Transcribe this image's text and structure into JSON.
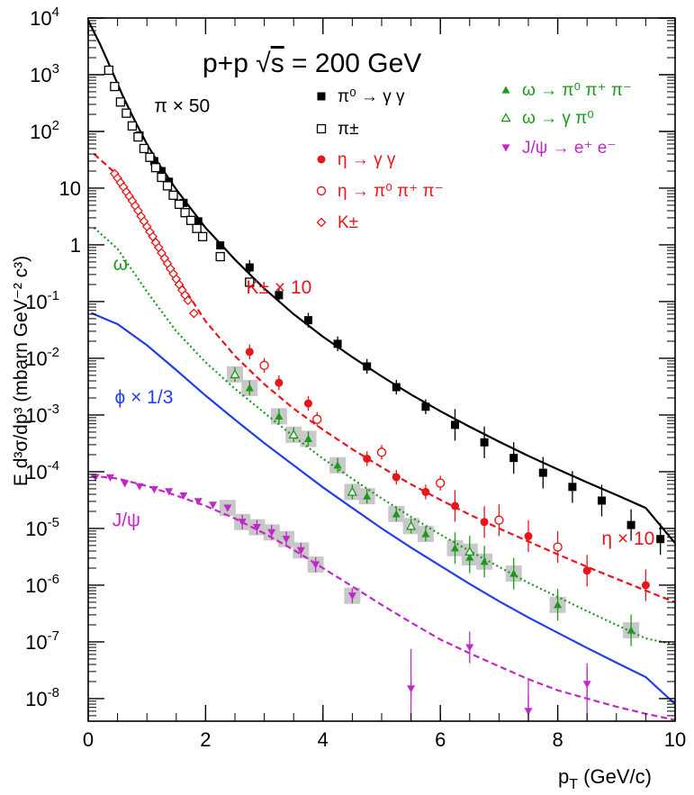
{
  "chart_data": {
    "type": "scatter",
    "title": "p+p √s = 200 GeV",
    "title_parts": {
      "pre": "p+p ",
      "sqrt": "√",
      "arg": "s",
      "post": " = 200 GeV"
    },
    "xlabel": "p_T (GeV/c)",
    "xlabel_parts": {
      "p": "p",
      "sub": "T",
      "rest": " (GeV/c)"
    },
    "ylabel": "E d³σ/dp³ (mbarn GeV⁻² c³)",
    "ylabel_text": "E d³σ/dp³ (mbarn GeV⁻² c³)",
    "xlim": [
      0,
      10
    ],
    "ylim": [
      4e-09,
      10000.0
    ],
    "y_scale": "log",
    "grid": false,
    "legend_position": "top-right",
    "x_ticks": [
      "0",
      "2",
      "4",
      "6",
      "8",
      "10"
    ],
    "y_ticks": [
      {
        "v": 10000.0,
        "base": "10",
        "exp": "4"
      },
      {
        "v": 1000.0,
        "base": "10",
        "exp": "3"
      },
      {
        "v": 100.0,
        "base": "10",
        "exp": "2"
      },
      {
        "v": 10.0,
        "base": "10",
        "exp": ""
      },
      {
        "v": 1,
        "base": "1",
        "exp": ""
      },
      {
        "v": 0.1,
        "base": "10",
        "exp": "-1"
      },
      {
        "v": 0.01,
        "base": "10",
        "exp": "-2"
      },
      {
        "v": 0.001,
        "base": "10",
        "exp": "-3"
      },
      {
        "v": 0.0001,
        "base": "10",
        "exp": "-4"
      },
      {
        "v": 1e-05,
        "base": "10",
        "exp": "-5"
      },
      {
        "v": 1e-06,
        "base": "10",
        "exp": "-6"
      },
      {
        "v": 1e-07,
        "base": "10",
        "exp": "-7"
      },
      {
        "v": 1e-08,
        "base": "10",
        "exp": "-8"
      }
    ],
    "legend": [
      {
        "label": "π⁰ → γ γ",
        "marker": "filled-square",
        "color": "#000000"
      },
      {
        "label": "π±",
        "marker": "open-square",
        "color": "#000000"
      },
      {
        "label": "η → γ γ",
        "marker": "filled-circle",
        "color": "#e8161b"
      },
      {
        "label": "η → π⁰ π⁺ π⁻",
        "marker": "open-circle",
        "color": "#e8161b"
      },
      {
        "label": "K±",
        "marker": "open-diamond",
        "color": "#e8161b"
      },
      {
        "label": "ω → π⁰ π⁺ π⁻",
        "marker": "filled-triangle",
        "color": "#1a9a1a"
      },
      {
        "label": "ω → γ π⁰",
        "marker": "open-triangle",
        "color": "#1a9a1a"
      },
      {
        "label": "J/ψ → e⁺ e⁻",
        "marker": "filled-triangle-down",
        "color": "#c028c8"
      }
    ],
    "annotations": [
      {
        "text": "π × 50",
        "color": "#000000",
        "x": 1.6,
        "y": 220
      },
      {
        "text": "K± × 10",
        "color": "#e8161b",
        "x": 3.25,
        "y": 0.14
      },
      {
        "text": "η × 10",
        "color": "#e8161b",
        "x": 9.2,
        "y": 5.2e-06
      },
      {
        "text": "ω",
        "color": "#1a9a1a",
        "x": 0.55,
        "y": 0.36
      },
      {
        "text": "ϕ × 1/3",
        "color": "#1f3ff0",
        "x": 0.95,
        "y": 0.0016
      },
      {
        "text": "J/ψ",
        "color": "#c028c8",
        "x": 0.65,
        "y": 1.1e-05
      }
    ],
    "series": [
      {
        "name": "π⁰ → γ γ",
        "marker": "filled-square",
        "color": "#000000",
        "x": [
          0.875,
          1.125,
          1.25,
          1.375,
          1.625,
          1.875,
          2.25,
          2.75,
          3.25,
          3.75,
          4.25,
          4.75,
          5.25,
          5.75,
          6.25,
          6.75,
          7.25,
          7.75,
          8.25,
          8.75,
          9.25,
          9.75
        ],
        "y": [
          85,
          30,
          20,
          13,
          5.5,
          2.6,
          0.98,
          0.4,
          0.13,
          0.047,
          0.018,
          0.0072,
          0.0031,
          0.0014,
          0.00067,
          0.00033,
          0.000175,
          9.6e-05,
          5.4e-05,
          3.1e-05,
          1.15e-05,
          6.5e-06
        ]
      },
      {
        "name": "π±",
        "marker": "open-square",
        "color": "#000000",
        "x": [
          0.35,
          0.45,
          0.55,
          0.65,
          0.75,
          0.85,
          0.95,
          1.05,
          1.15,
          1.25,
          1.35,
          1.45,
          1.55,
          1.65,
          1.75,
          1.85,
          1.95,
          2.25,
          2.75
        ],
        "y": [
          1200,
          620,
          330,
          210,
          125,
          80,
          50,
          35,
          23,
          15.5,
          11,
          7.5,
          5.2,
          3.7,
          2.7,
          1.95,
          1.4,
          0.62,
          0.22
        ]
      },
      {
        "name": "η → γ γ",
        "marker": "filled-circle",
        "color": "#e8161b",
        "x": [
          2.75,
          3.25,
          3.75,
          4.75,
          5.25,
          5.75,
          6.25,
          6.75,
          7.5,
          8.5,
          9.5
        ],
        "y": [
          0.013,
          0.0037,
          0.0016,
          0.00017,
          8e-05,
          4.4e-05,
          2.5e-05,
          1.3e-05,
          7.3e-06,
          1.8e-06,
          1e-06
        ]
      },
      {
        "name": "η → π⁰ π⁺ π⁻",
        "marker": "open-circle",
        "color": "#e8161b",
        "x": [
          3.0,
          3.9,
          5.0,
          6.0,
          7.0,
          8.0
        ],
        "y": [
          0.0075,
          0.00084,
          0.00022,
          6.3e-05,
          1.4e-05,
          4.7e-06
        ]
      },
      {
        "name": "K±",
        "marker": "open-diamond",
        "color": "#e8161b",
        "x": [
          0.45,
          0.5,
          0.55,
          0.6,
          0.65,
          0.7,
          0.75,
          0.8,
          0.85,
          0.9,
          0.95,
          1.0,
          1.05,
          1.1,
          1.15,
          1.2,
          1.25,
          1.3,
          1.35,
          1.4,
          1.45,
          1.5,
          1.55,
          1.6,
          1.65,
          1.7,
          1.8
        ],
        "y": [
          18,
          15,
          12.5,
          10.5,
          8.6,
          7.2,
          6.0,
          4.9,
          4.0,
          3.2,
          2.6,
          2.1,
          1.7,
          1.4,
          1.1,
          0.9,
          0.72,
          0.58,
          0.47,
          0.38,
          0.31,
          0.25,
          0.2,
          0.16,
          0.13,
          0.105,
          0.062
        ],
        "annotation_note": ""
      },
      {
        "name": "ω → π⁰ π⁺ π⁻",
        "marker": "filled-triangle",
        "color": "#1a9a1a",
        "x": [
          2.75,
          3.25,
          3.75,
          4.25,
          4.75,
          5.25,
          5.75,
          6.25,
          6.5,
          6.75,
          7.25,
          8.0,
          9.25
        ],
        "y": [
          0.003,
          0.00095,
          0.00038,
          0.00013,
          3.7e-05,
          1.8e-05,
          8e-06,
          4.5e-06,
          3.1e-06,
          2.6e-06,
          1.6e-06,
          4.5e-07,
          1.6e-07
        ]
      },
      {
        "name": "ω → γ π⁰",
        "marker": "open-triangle",
        "color": "#1a9a1a",
        "x": [
          2.5,
          3.5,
          4.5,
          5.5,
          6.5
        ],
        "y": [
          0.0052,
          0.00045,
          4.4e-05,
          1.1e-05,
          3.9e-06
        ]
      },
      {
        "name": "J/ψ → e⁺ e⁻",
        "marker": "filled-triangle-down",
        "color": "#c028c8",
        "x": [
          0.125,
          0.375,
          0.625,
          0.875,
          1.125,
          1.375,
          1.625,
          1.875,
          2.125,
          2.375,
          2.625,
          2.875,
          3.125,
          3.375,
          3.625,
          3.875,
          4.5,
          5.5,
          6.5,
          7.5,
          8.5
        ],
        "y": [
          8e-05,
          7.9e-05,
          6.2e-05,
          5.5e-05,
          4.9e-05,
          4.5e-05,
          3.8e-05,
          3e-05,
          2.6e-05,
          2.3e-05,
          1.3e-05,
          1.05e-05,
          8.5e-06,
          6.5e-06,
          4.1e-06,
          2.3e-06,
          6.5e-07,
          1.5e-08,
          8e-08,
          6e-09,
          1.8e-08
        ]
      }
    ],
    "curves": [
      {
        "name": "π fit",
        "style": "solid",
        "color": "#000000",
        "x": [
          0,
          0.2,
          0.4,
          0.6,
          0.8,
          1.0,
          1.2,
          1.5,
          2.0,
          2.5,
          3.0,
          3.5,
          4.0,
          4.5,
          5.0,
          5.5,
          6.0,
          6.5,
          7.0,
          7.5,
          8.0,
          8.5,
          9.0,
          9.5,
          10.0
        ],
        "y": [
          9000,
          3500,
          1200,
          400,
          150,
          60,
          27,
          9.5,
          2.0,
          0.55,
          0.17,
          0.06,
          0.024,
          0.0105,
          0.0048,
          0.0023,
          0.00117,
          0.00062,
          0.00034,
          0.00019,
          0.00011,
          6.5e-05,
          3.9e-05,
          2.3e-05,
          5.5e-06
        ]
      },
      {
        "name": "η fit",
        "style": "dashed",
        "color": "#e8161b",
        "x": [
          0.1,
          0.5,
          1.0,
          1.5,
          2.0,
          2.5,
          3.0,
          3.5,
          4.0,
          4.5,
          5.0,
          5.5,
          6.0,
          6.5,
          7.0,
          7.5,
          8.0,
          8.5,
          9.0,
          9.5,
          10.0
        ],
        "y": [
          40,
          17,
          2.3,
          0.28,
          0.045,
          0.011,
          0.0035,
          0.0013,
          0.00055,
          0.00025,
          0.00012,
          6e-05,
          3.2e-05,
          1.75e-05,
          1e-05,
          5.9e-06,
          3.5e-06,
          2.1e-06,
          1.3e-06,
          8e-07,
          5e-07
        ]
      },
      {
        "name": "ω fit",
        "style": "dotted",
        "color": "#1a9a1a",
        "x": [
          0.1,
          0.5,
          1.0,
          1.5,
          2.0,
          2.5,
          3.0,
          3.5,
          4.0,
          4.5,
          5.0,
          5.5,
          6.0,
          6.5,
          7.0,
          7.5,
          8.0,
          8.5,
          9.0,
          9.5,
          10.0
        ],
        "y": [
          2.0,
          0.85,
          0.15,
          0.03,
          0.0085,
          0.0029,
          0.0011,
          0.00042,
          0.00017,
          7.5e-05,
          3.4e-05,
          1.6e-05,
          7.8e-06,
          4e-06,
          2.1e-06,
          1.1e-06,
          6.2e-07,
          3.5e-07,
          2e-07,
          1.15e-07,
          9e-08
        ]
      },
      {
        "name": "ϕ curve",
        "style": "solid",
        "color": "#1f3ff0",
        "x": [
          0.05,
          0.5,
          1.0,
          1.5,
          2.0,
          2.5,
          3.0,
          3.5,
          4.0,
          4.5,
          5.0,
          5.5,
          6.0,
          6.5,
          7.0,
          7.5,
          8.0,
          8.5,
          9.0,
          9.5,
          10.0
        ],
        "y": [
          0.063,
          0.04,
          0.017,
          0.0062,
          0.0022,
          0.00083,
          0.00032,
          0.00013,
          5.3e-05,
          2.3e-05,
          1e-05,
          4.6e-06,
          2.2e-06,
          1.05e-06,
          5.2e-07,
          2.7e-07,
          1.45e-07,
          7.8e-08,
          4.3e-08,
          2.4e-08,
          8e-09
        ]
      },
      {
        "name": "J/ψ fit",
        "style": "dashed",
        "color": "#c028c8",
        "x": [
          0.05,
          0.5,
          1.0,
          1.5,
          2.0,
          2.5,
          3.0,
          3.5,
          4.0,
          4.5,
          5.0,
          5.5,
          6.0,
          6.5,
          7.0,
          7.5,
          8.0,
          8.5,
          9.0,
          9.5,
          10.0
        ],
        "y": [
          8.5e-05,
          7.6e-05,
          5.6e-05,
          3.8e-05,
          2.5e-05,
          1.5e-05,
          8.2e-06,
          4.2e-06,
          2e-06,
          9.5e-07,
          4.5e-07,
          2.2e-07,
          1.1e-07,
          6.3e-08,
          3.7e-08,
          2.2e-08,
          1.4e-08,
          1e-08,
          7.2e-09,
          5.4e-09,
          4.2e-09
        ]
      }
    ]
  }
}
